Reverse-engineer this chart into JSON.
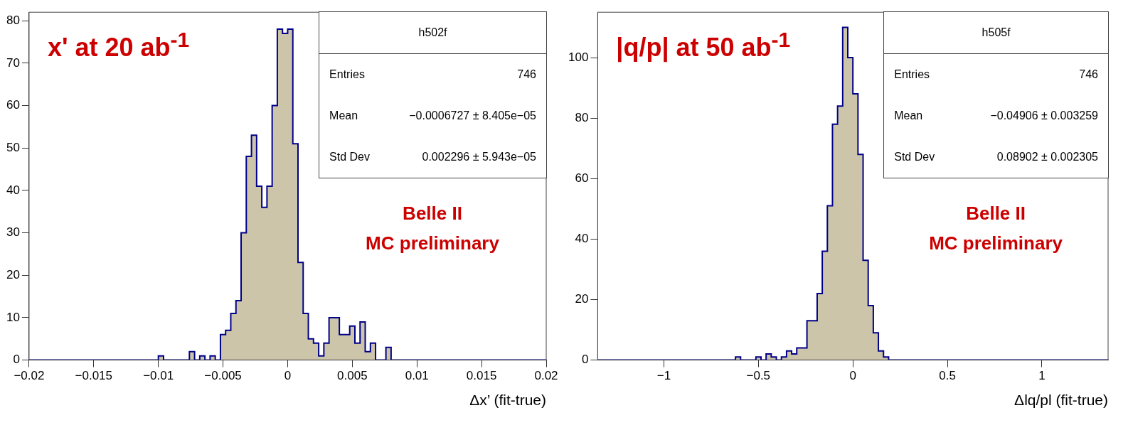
{
  "chart_data": [
    {
      "type": "histogram",
      "title": "x' at 20 ab$^{-1}$",
      "xlabel": "Δx’ (fit-true)",
      "color": "#ccc5aa",
      "bins": [
        -0.02,
        -0.01,
        -0.0096,
        -0.0092,
        -0.0088,
        -0.0084,
        -0.008,
        -0.0076,
        -0.0072,
        -0.0068,
        -0.0064,
        -0.006,
        -0.0056,
        -0.0052,
        -0.0048,
        -0.0044,
        -0.004,
        -0.0036,
        -0.0032,
        -0.0028,
        -0.0024,
        -0.002,
        -0.0016,
        -0.0012,
        -0.0008,
        -0.0004,
        0,
        0.0004,
        0.0008,
        0.0012,
        0.0016,
        0.002,
        0.0024,
        0.0028,
        0.0032,
        0.0036,
        0.004,
        0.0044,
        0.0048,
        0.0052,
        0.0056,
        0.006,
        0.0064,
        0.0068,
        0.0072,
        0.0076,
        0.008,
        0.02
      ],
      "values": [
        0,
        1,
        0,
        0,
        0,
        0,
        0,
        2,
        0,
        1,
        0,
        1,
        0,
        6,
        7,
        11,
        14,
        30,
        48,
        53,
        41,
        36,
        41,
        60,
        78,
        77,
        78,
        51,
        23,
        11,
        5,
        4,
        1,
        4,
        10,
        10,
        6,
        6,
        8,
        4,
        9,
        2,
        4,
        0,
        0,
        3,
        0
      ],
      "xlim": [
        -0.02,
        0.02
      ],
      "xticks": [
        -0.02,
        -0.015,
        -0.01,
        -0.005,
        0,
        0.005,
        0.01,
        0.015,
        0.02
      ],
      "ylim": [
        0,
        82
      ],
      "yticks": [
        0,
        10,
        20,
        30,
        40,
        50,
        60,
        70,
        80
      ],
      "annotations": [
        "h502f",
        "Entries",
        "746",
        "Mean",
        "−0.0006727 ± 8.405e−05",
        "Std Dev",
        "0.002296 ± 5.943e−05",
        "Belle II",
        "MC preliminary"
      ]
    },
    {
      "type": "histogram",
      "title": "|q/p| at 50 ab$^{-1}$",
      "xlabel": "Δlq/pl (fit-true)",
      "color": "#ccc5aa",
      "bins": [
        -1.35,
        -0.621,
        -0.594,
        -0.567,
        -0.54,
        -0.513,
        -0.486,
        -0.459,
        -0.432,
        -0.405,
        -0.378,
        -0.351,
        -0.324,
        -0.297,
        -0.27,
        -0.243,
        -0.216,
        -0.189,
        -0.162,
        -0.135,
        -0.108,
        -0.081,
        -0.054,
        -0.027,
        0,
        0.027,
        0.054,
        0.081,
        0.108,
        0.135,
        0.162,
        0.189,
        1.35
      ],
      "values": [
        0,
        1,
        0,
        0,
        0,
        1,
        0,
        2,
        1,
        0,
        1,
        3,
        2,
        4,
        4,
        13,
        13,
        22,
        36,
        51,
        78,
        84,
        110,
        100,
        88,
        68,
        33,
        18,
        9,
        3,
        1,
        0
      ],
      "xlim": [
        -1.35,
        1.35
      ],
      "xticks": [
        -1,
        -0.5,
        0,
        0.5,
        1
      ],
      "ylim": [
        0,
        115
      ],
      "yticks": [
        0,
        20,
        40,
        60,
        80,
        100
      ],
      "annotations": [
        "h505f",
        "Entries",
        "746",
        "Mean",
        "−0.04906 ± 0.003259",
        "Std Dev",
        "0.08902 ± 0.002305",
        "Belle II",
        "MC preliminary"
      ]
    }
  ]
}
